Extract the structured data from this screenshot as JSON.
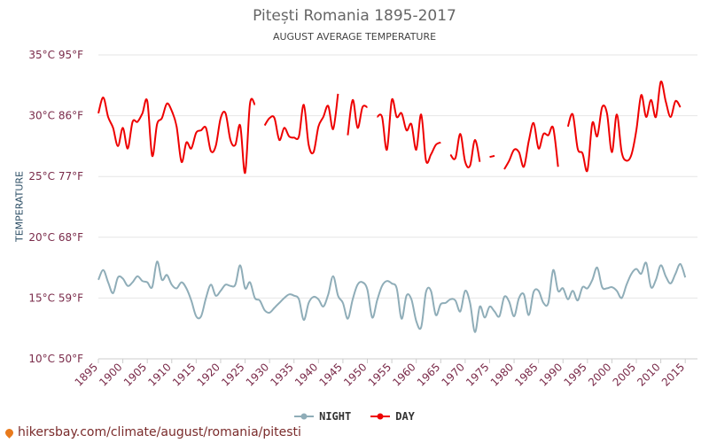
{
  "header": {
    "title": "Pitești Romania 1895-2017",
    "subtitle": "AUGUST AVERAGE TEMPERATURE"
  },
  "footer": {
    "text": "hikersbay.com/climate/august/romania/pitesti"
  },
  "colors": {
    "day": "#ee0000",
    "night": "#8fadb8",
    "grid": "#e6e6e6",
    "axis_text": "#7a2b4a"
  },
  "chart_data": {
    "type": "line",
    "ylabel": "TEMPERATURE",
    "ylim": [
      10,
      35
    ],
    "yticks": [
      {
        "value": 35,
        "label": "35°C 95°F"
      },
      {
        "value": 30,
        "label": "30°C 86°F"
      },
      {
        "value": 25,
        "label": "25°C 77°F"
      },
      {
        "value": 20,
        "label": "20°C 68°F"
      },
      {
        "value": 15,
        "label": "15°C 59°F"
      },
      {
        "value": 10,
        "label": "10°C 50°F"
      }
    ],
    "xlim": [
      1895,
      2017.5
    ],
    "xticks": [
      1895,
      1900,
      1905,
      1910,
      1915,
      1920,
      1925,
      1930,
      1935,
      1940,
      1945,
      1950,
      1955,
      1960,
      1965,
      1970,
      1975,
      1980,
      1985,
      1990,
      1995,
      2000,
      2005,
      2010,
      2015
    ],
    "legend_position": "bottom",
    "series": [
      {
        "name": "NIGHT",
        "color": "#8fadb8",
        "x_start": 1895,
        "values": [
          16.5,
          17.3,
          16.3,
          15.4,
          16.7,
          16.6,
          16.0,
          16.3,
          16.8,
          16.4,
          16.3,
          15.9,
          18.0,
          16.5,
          16.9,
          16.1,
          15.8,
          16.3,
          15.8,
          14.8,
          13.5,
          13.5,
          15.0,
          16.1,
          15.2,
          15.6,
          16.1,
          16.0,
          16.1,
          17.7,
          15.8,
          16.3,
          15.0,
          14.8,
          14.0,
          13.8,
          14.2,
          14.6,
          15.0,
          15.3,
          15.2,
          14.9,
          13.2,
          14.6,
          15.1,
          14.9,
          14.3,
          15.3,
          16.8,
          15.2,
          14.6,
          13.3,
          14.9,
          16.1,
          16.3,
          15.7,
          13.4,
          14.8,
          16.0,
          16.4,
          16.2,
          15.8,
          13.3,
          15.2,
          14.9,
          13.1,
          12.6,
          15.5,
          15.6,
          13.6,
          14.5,
          14.6,
          14.9,
          14.8,
          13.9,
          15.6,
          14.6,
          12.2,
          14.3,
          13.4,
          14.3,
          13.9,
          13.5,
          15.1,
          14.7,
          13.5,
          15.0,
          15.3,
          13.6,
          15.5,
          15.6,
          14.6,
          14.6,
          17.3,
          15.6,
          15.8,
          14.9,
          15.6,
          14.8,
          15.9,
          15.8,
          16.5,
          17.5,
          15.9,
          15.8,
          15.9,
          15.6,
          15.0,
          16.1,
          17.0,
          17.4,
          17.0,
          17.9,
          15.9,
          16.5,
          17.7,
          16.8,
          16.2,
          17.0,
          17.8,
          16.7
        ]
      },
      {
        "name": "DAY",
        "color": "#ee0000",
        "x_start": 1895,
        "values": [
          30.2,
          31.5,
          29.9,
          29.0,
          27.5,
          29.0,
          27.3,
          29.5,
          29.5,
          30.2,
          31.2,
          26.7,
          29.3,
          29.8,
          31.0,
          30.4,
          29.1,
          26.2,
          27.8,
          27.3,
          28.6,
          28.8,
          29.0,
          27.1,
          27.5,
          29.8,
          30.2,
          28.0,
          27.6,
          29.2,
          25.3,
          31.0,
          30.9,
          null,
          29.2,
          29.8,
          29.8,
          28.0,
          29.0,
          28.3,
          28.2,
          28.3,
          30.9,
          27.6,
          27.0,
          29.1,
          29.9,
          30.8,
          28.9,
          31.8,
          null,
          28.4,
          31.3,
          29.0,
          30.7,
          30.7,
          null,
          29.9,
          29.9,
          27.2,
          31.3,
          29.9,
          30.2,
          28.8,
          29.3,
          27.2,
          30.1,
          26.3,
          26.8,
          27.6,
          27.8,
          null,
          26.8,
          26.5,
          28.5,
          26.2,
          25.9,
          28.0,
          26.2,
          null,
          26.6,
          26.7,
          null,
          25.6,
          26.3,
          27.2,
          27.0,
          25.8,
          27.9,
          29.4,
          27.3,
          28.5,
          28.4,
          29.0,
          25.8,
          null,
          29.1,
          30.1,
          27.3,
          26.9,
          25.5,
          29.4,
          28.3,
          30.7,
          30.2,
          27.0,
          30.1,
          27.0,
          26.3,
          26.8,
          28.8,
          31.7,
          29.9,
          31.3,
          29.9,
          32.8,
          31.2,
          29.9,
          31.2,
          30.7
        ]
      }
    ]
  }
}
